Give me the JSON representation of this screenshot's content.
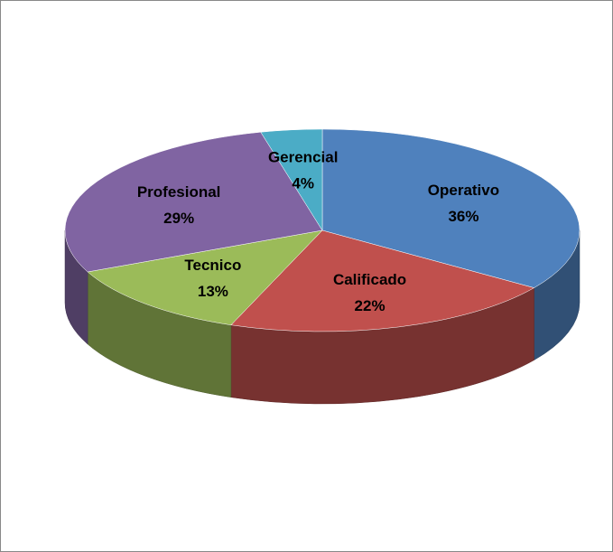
{
  "chart_data": {
    "type": "pie3d",
    "categories": [
      "Operativo",
      "Calificado",
      "Tecnico",
      "Profesional",
      "Gerencial"
    ],
    "values": [
      36,
      22,
      13,
      29,
      4
    ],
    "value_labels": [
      "36%",
      "22%",
      "13%",
      "29%",
      "4%"
    ],
    "colors": [
      "#4f81bd",
      "#c0504d",
      "#9bbb59",
      "#8064a2",
      "#4bacc6"
    ]
  }
}
